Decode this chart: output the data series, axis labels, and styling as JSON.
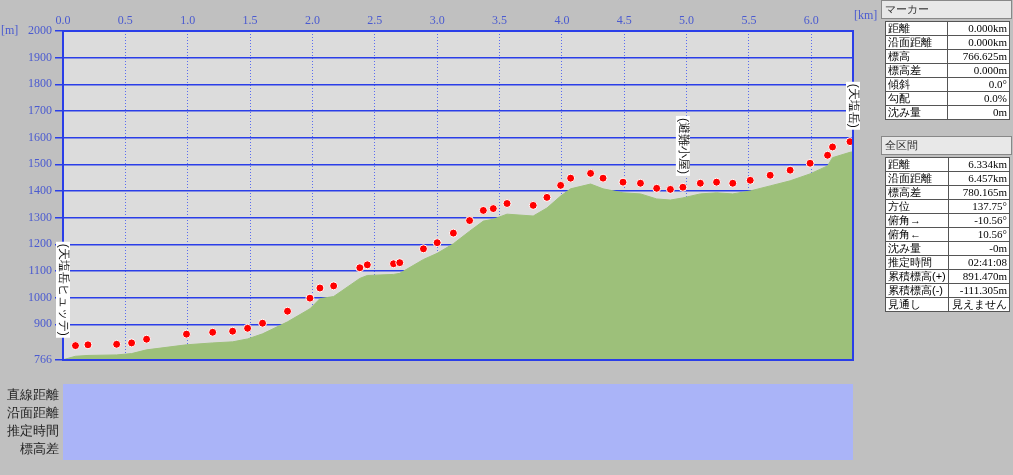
{
  "chart_data": [
    {
      "type": "area",
      "xlabel": "[km]",
      "ylabel": "[m]",
      "xlim": [
        0,
        6.334
      ],
      "ylim": [
        766,
        2000
      ],
      "xticks": [
        {
          "value": 0,
          "label": "0.0"
        },
        {
          "value": 0.5,
          "label": "0.5"
        },
        {
          "value": 1,
          "label": "1.0"
        },
        {
          "value": 1.5,
          "label": "1.5"
        },
        {
          "value": 2,
          "label": "2.0"
        },
        {
          "value": 2.5,
          "label": "2.5"
        },
        {
          "value": 3,
          "label": "3.0"
        },
        {
          "value": 3.5,
          "label": "3.5"
        },
        {
          "value": 4,
          "label": "4.0"
        },
        {
          "value": 4.5,
          "label": "4.5"
        },
        {
          "value": 5,
          "label": "5.0"
        },
        {
          "value": 5.5,
          "label": "5.5"
        },
        {
          "value": 6,
          "label": "6.0"
        }
      ],
      "yticks": [
        766,
        900,
        1000,
        1100,
        1200,
        1300,
        1400,
        1500,
        1600,
        1700,
        1800,
        1900,
        2000
      ],
      "grid": true,
      "legend": false,
      "series": [
        {
          "type": "area",
          "color": "#9dc07a",
          "x": [
            0,
            0.1,
            0.2,
            0.43,
            0.55,
            0.67,
            0.99,
            1.2,
            1.36,
            1.48,
            1.6,
            1.8,
            1.98,
            2.06,
            2.17,
            2.38,
            2.44,
            2.65,
            2.7,
            2.89,
            3.0,
            3.13,
            3.26,
            3.37,
            3.45,
            3.56,
            3.77,
            3.88,
            3.99,
            4.07,
            4.23,
            4.33,
            4.49,
            4.63,
            4.76,
            4.87,
            4.97,
            5.11,
            5.24,
            5.37,
            5.51,
            5.67,
            5.83,
            5.99,
            6.13,
            6.17,
            6.31,
            6.334
          ],
          "values": [
            767,
            780,
            783,
            785,
            790,
            804,
            823,
            830,
            834,
            845,
            864,
            909,
            958,
            996,
            1004,
            1072,
            1083,
            1087,
            1091,
            1143,
            1166,
            1202,
            1249,
            1287,
            1294,
            1313,
            1306,
            1336,
            1381,
            1408,
            1426,
            1408,
            1393,
            1389,
            1370,
            1366,
            1374,
            1389,
            1393,
            1389,
            1400,
            1419,
            1438,
            1464,
            1494,
            1525,
            1545,
            1547
          ]
        },
        {
          "type": "scatter",
          "color": "#ff0000",
          "marker": "circle",
          "x": [
            0.1,
            0.2,
            0.43,
            0.55,
            0.67,
            0.99,
            1.2,
            1.36,
            1.48,
            1.6,
            1.8,
            1.98,
            2.06,
            2.17,
            2.38,
            2.44,
            2.65,
            2.7,
            2.89,
            3.0,
            3.13,
            3.26,
            3.37,
            3.45,
            3.56,
            3.77,
            3.88,
            3.99,
            4.07,
            4.23,
            4.33,
            4.49,
            4.63,
            4.76,
            4.87,
            4.97,
            5.11,
            5.24,
            5.37,
            5.51,
            5.67,
            5.83,
            5.99,
            6.13,
            6.17,
            6.31
          ],
          "values": [
            820,
            823,
            825,
            830,
            844,
            863,
            870,
            874,
            885,
            904,
            949,
            998,
            1036,
            1044,
            1112,
            1123,
            1127,
            1131,
            1183,
            1206,
            1242,
            1289,
            1327,
            1334,
            1353,
            1346,
            1376,
            1421,
            1448,
            1466,
            1448,
            1433,
            1429,
            1410,
            1406,
            1414,
            1429,
            1433,
            1429,
            1440,
            1459,
            1478,
            1504,
            1534,
            1565,
            1585
          ]
        }
      ],
      "annotations": [
        {
          "text": "(天塩岳ヒュッテ)",
          "x": 0,
          "y": 767
        },
        {
          "text": "(避難小屋)",
          "x": 4.97,
          "y": 1374
        },
        {
          "text": "(天塩岳)",
          "x": 6.334,
          "y": 1547
        },
        "直線距離",
        "沿面距離",
        "推定時間",
        "標高差"
      ]
    },
    {
      "type": "other",
      "title": "マーカー",
      "annotations": [
        "距離",
        "0.000km",
        "沿面距離",
        "0.000km",
        "標高",
        "766.625m",
        "標高差",
        "0.000m",
        "傾斜",
        "0.0°",
        "勾配",
        "0.0%",
        "沈み量",
        "0m"
      ]
    },
    {
      "type": "other",
      "title": "全区間",
      "annotations": [
        "距離",
        "6.334km",
        "沿面距離",
        "6.457km",
        "標高差",
        "780.165m",
        "方位",
        "137.75°",
        "俯角→",
        "-10.56°",
        "俯角←",
        "10.56°",
        "沈み量",
        "-0m",
        "推定時間",
        "02:41:08",
        "累積標高(+)",
        "891.470m",
        "累積標高(-)",
        "-111.305m",
        "見通し",
        "見えません"
      ]
    }
  ]
}
